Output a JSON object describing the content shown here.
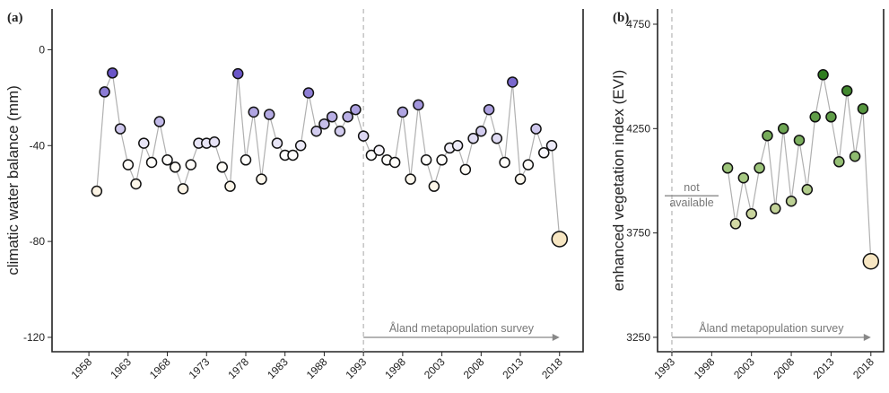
{
  "chart_data": [
    {
      "type": "scatter",
      "panel_label": "(a)",
      "y_label": "climatic water balance (mm)",
      "x": [
        1959,
        1960,
        1961,
        1962,
        1963,
        1964,
        1965,
        1966,
        1967,
        1968,
        1969,
        1970,
        1971,
        1972,
        1973,
        1974,
        1975,
        1976,
        1977,
        1978,
        1979,
        1980,
        1981,
        1982,
        1983,
        1984,
        1985,
        1986,
        1987,
        1988,
        1989,
        1990,
        1991,
        1992,
        1993,
        1994,
        1995,
        1996,
        1997,
        1998,
        1999,
        2000,
        2001,
        2002,
        2003,
        2004,
        2005,
        2006,
        2007,
        2008,
        2009,
        2010,
        2011,
        2012,
        2013,
        2014,
        2015,
        2016,
        2017,
        2018
      ],
      "values": [
        -59,
        -17.6,
        -9.7,
        -33,
        -48,
        -56,
        -39,
        -47,
        -30,
        -46,
        -49,
        -58,
        -48,
        -39,
        -39,
        -38.5,
        -49,
        -57,
        -10,
        -46,
        -26,
        -54,
        -27,
        -39,
        -44,
        -44,
        -40,
        -18,
        -34,
        -31,
        -28,
        -34,
        -28,
        -25,
        -36,
        -44,
        -42,
        -46,
        -47,
        -26,
        -54,
        -23,
        -46,
        -57,
        -46,
        -41,
        -40,
        -50,
        -37,
        -34,
        -25,
        -37,
        -47,
        -13.5,
        -54,
        -48,
        -33,
        -43,
        -40,
        -79
      ],
      "color_scale": [
        "#f7e6c2",
        "#ffffff",
        "#6a55c8"
      ],
      "line_color": "#b0b0b0",
      "xlim": [
        1953.3,
        2021
      ],
      "xticks": [
        1958,
        1963,
        1968,
        1973,
        1978,
        1983,
        1988,
        1993,
        1998,
        2003,
        2008,
        2013,
        2018
      ],
      "ylim": [
        -126,
        17
      ],
      "yticks": [
        -120,
        -80,
        -40,
        0
      ],
      "vline": 1993,
      "arrow": [
        1993,
        2018
      ],
      "arrow_label": "Åland metapopulation survey",
      "last_point_large": true
    },
    {
      "type": "scatter",
      "panel_label": "(b)",
      "y_label": "enhanced vegetation index (EVI)",
      "x": [
        2000,
        2001,
        2002,
        2003,
        2004,
        2005,
        2006,
        2007,
        2008,
        2009,
        2010,
        2011,
        2012,
        2013,
        2014,
        2015,
        2016,
        2017,
        2018
      ],
      "values": [
        4061,
        3794,
        4014,
        3842,
        4061,
        4216,
        3867,
        4250,
        3902,
        4194,
        3958,
        4306,
        4508,
        4306,
        4091,
        4431,
        4117,
        4345,
        3614
      ],
      "color_scale": [
        "#f7e6c2",
        "#9cc47a",
        "#2f7d1f"
      ],
      "line_color": "#b0b0b0",
      "xlim": [
        1991.2,
        2019.6
      ],
      "xticks": [
        1993,
        1998,
        2003,
        2008,
        2013,
        2018
      ],
      "ylim": [
        3181,
        4823
      ],
      "yticks": [
        3250,
        3750,
        4250,
        4750
      ],
      "vline": 1993,
      "arrow": [
        1993,
        2018
      ],
      "arrow_label": "Åland metapopulation survey",
      "last_point_large": true,
      "note": [
        "not",
        "available"
      ]
    }
  ]
}
